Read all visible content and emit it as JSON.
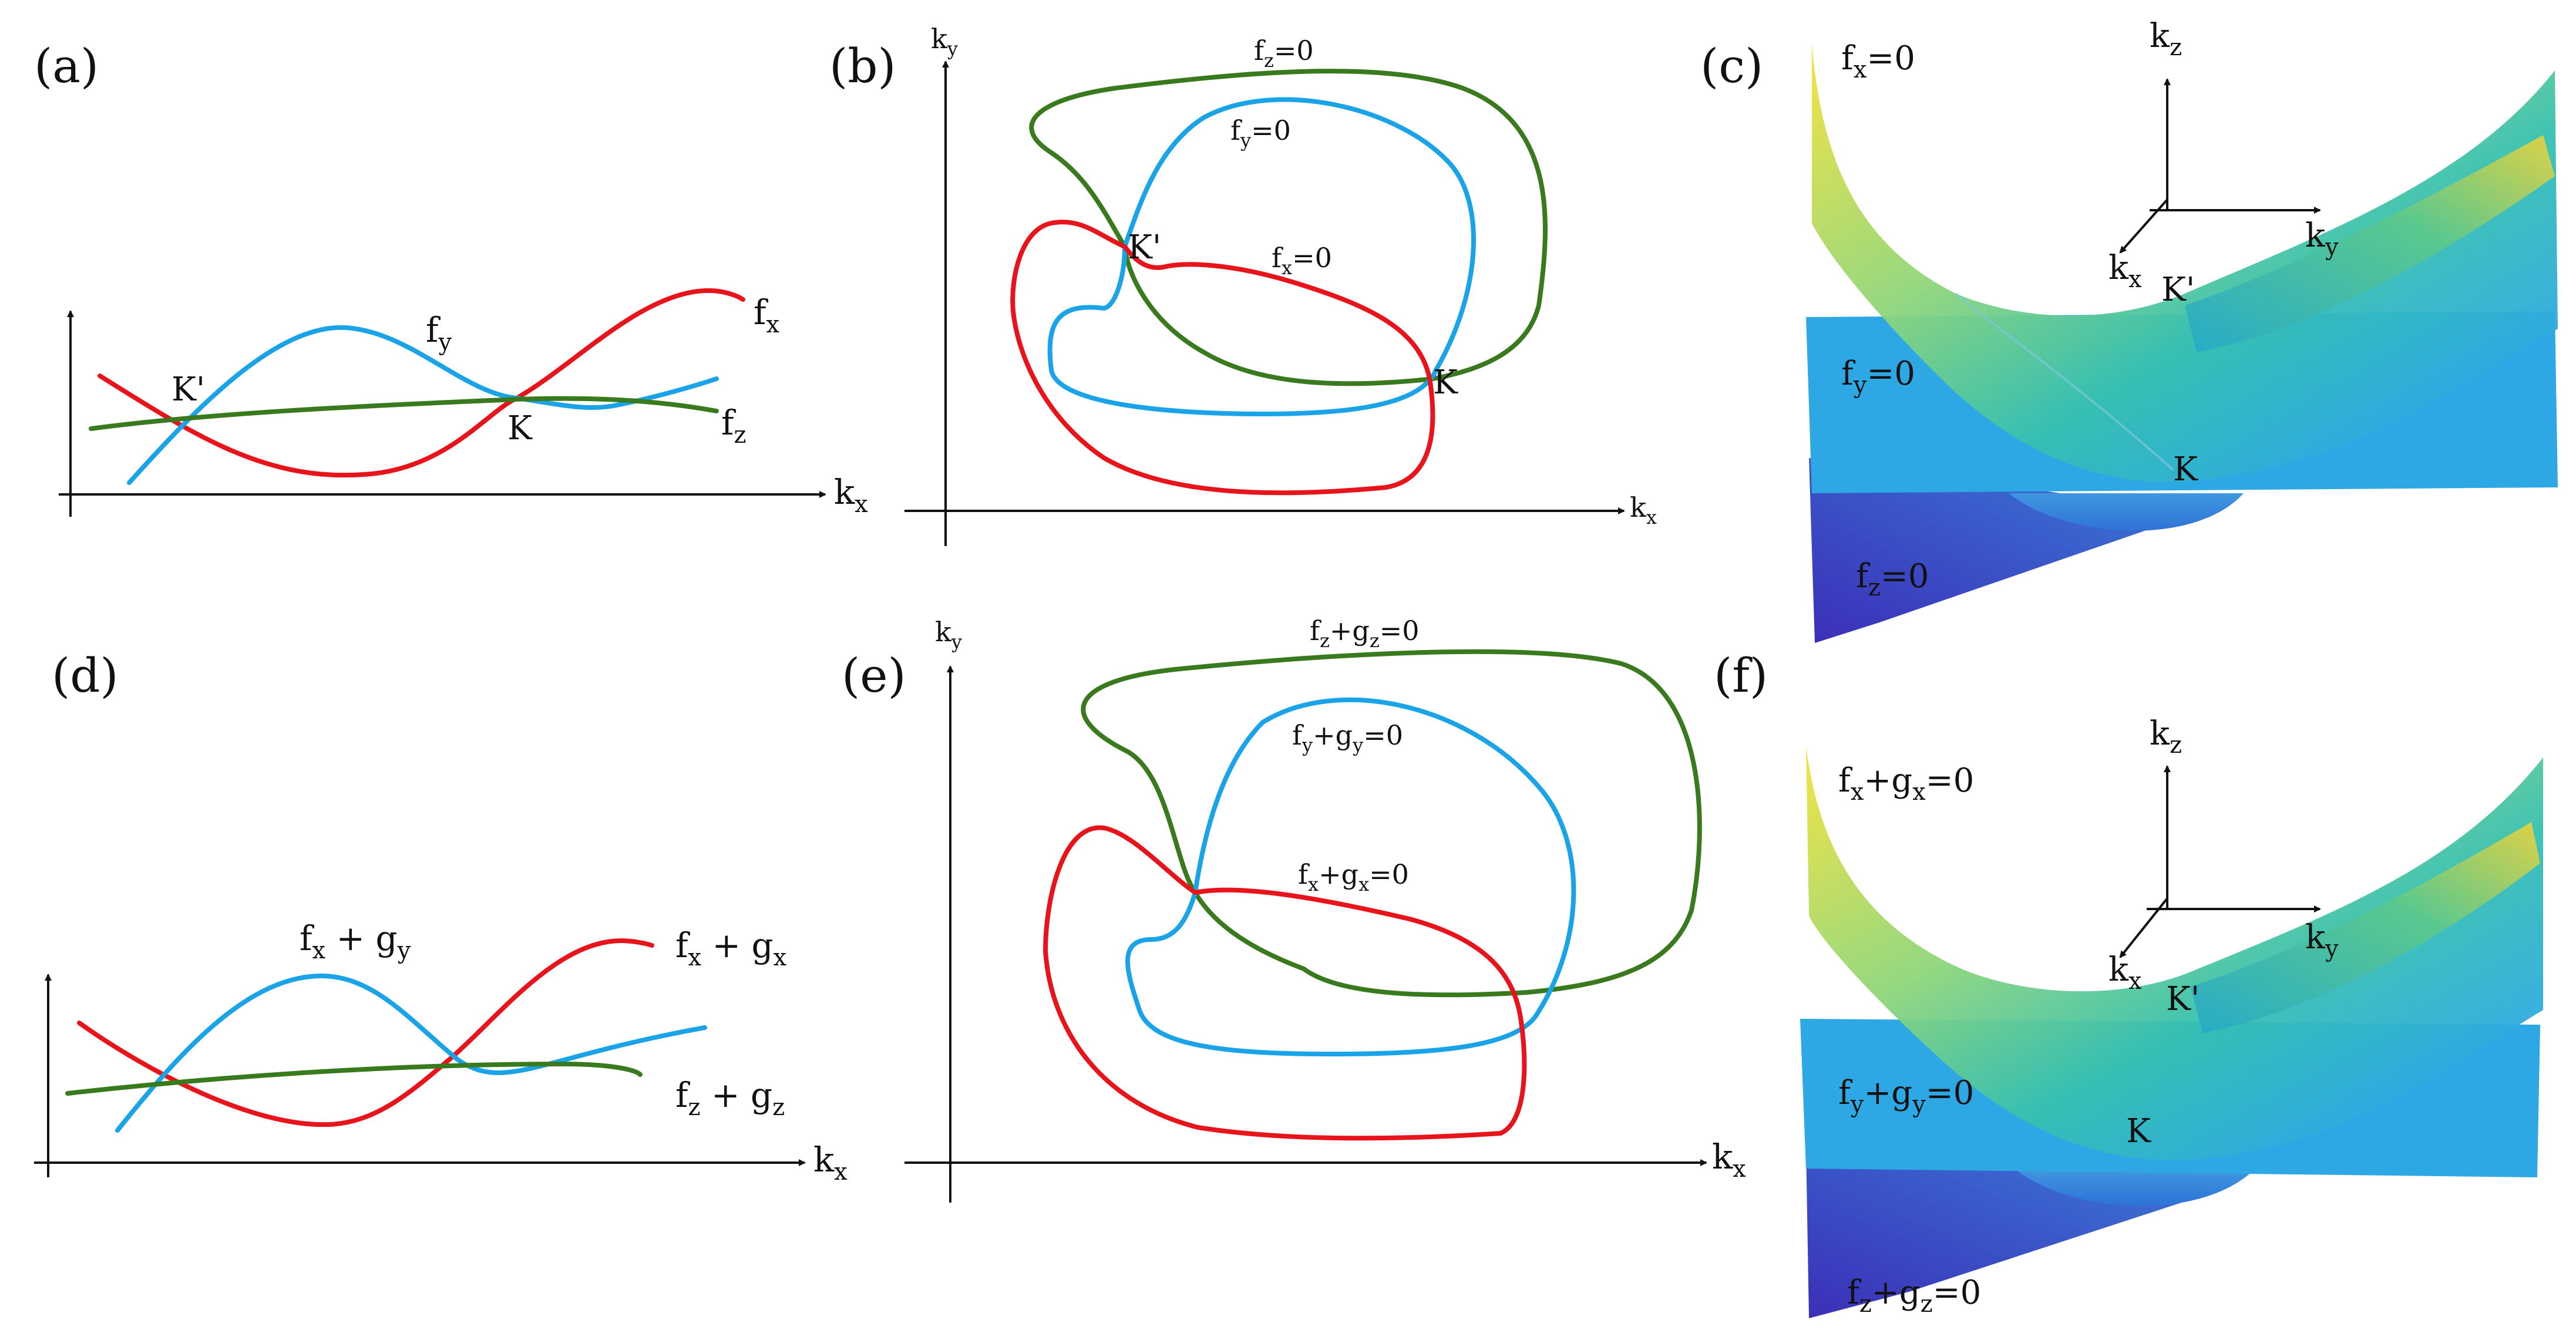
{
  "colors": {
    "red": "#e8141b",
    "blue": "#1aa3e6",
    "green": "#3a7a1f",
    "plane_blue": "#2ea8e4",
    "deep_blue": "#3b2fb8",
    "yellow": "#f4e23a",
    "teal": "#36c0b0"
  },
  "panels": {
    "a": {
      "label": "(a)",
      "axis_x": "kx",
      "curves": [
        {
          "name": "fx",
          "color": "red"
        },
        {
          "name": "fy",
          "color": "blue"
        },
        {
          "name": "fz",
          "color": "green"
        }
      ],
      "points": [
        "K'",
        "K"
      ]
    },
    "b": {
      "label": "(b)",
      "axis_x": "kx",
      "axis_y": "ky",
      "loops": [
        {
          "name": "fz=0",
          "color": "green"
        },
        {
          "name": "fy=0",
          "color": "blue"
        },
        {
          "name": "fx=0",
          "color": "red"
        }
      ],
      "points": [
        "K'",
        "K"
      ]
    },
    "c": {
      "label": "(c)",
      "axes": [
        "kx",
        "ky",
        "kz"
      ],
      "surfaces": [
        "fx=0",
        "fy=0",
        "fz=0"
      ],
      "points": [
        "K'",
        "K"
      ]
    },
    "d": {
      "label": "(d)",
      "axis_x": "kx",
      "curves": [
        {
          "name": "fx + gx",
          "color": "red"
        },
        {
          "name": "fx + gy",
          "color": "blue"
        },
        {
          "name": "fz + gz",
          "color": "green"
        }
      ]
    },
    "e": {
      "label": "(e)",
      "axis_x": "kx",
      "axis_y": "ky",
      "loops": [
        {
          "name": "fz+gz=0",
          "color": "green"
        },
        {
          "name": "fy+gy=0",
          "color": "blue"
        },
        {
          "name": "fx+gx=0",
          "color": "red"
        }
      ]
    },
    "f": {
      "label": "(f)",
      "axes": [
        "kx",
        "ky",
        "kz"
      ],
      "surfaces": [
        "fx+gx=0",
        "fy+gy=0",
        "fz+gz=0"
      ],
      "points": [
        "K'",
        "K"
      ]
    }
  }
}
